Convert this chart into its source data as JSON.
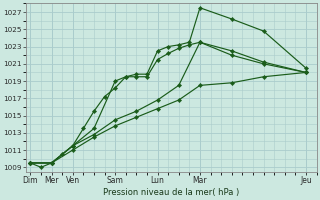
{
  "background_color": "#cce8e0",
  "grid_color": "#aacccc",
  "line_color": "#1a5c1a",
  "title": "Pression niveau de la mer( hPa )",
  "ylim": [
    1008.5,
    1028.0
  ],
  "yticks": [
    1009,
    1011,
    1013,
    1015,
    1017,
    1019,
    1021,
    1023,
    1025,
    1027
  ],
  "x_tick_positions": [
    0,
    1,
    2,
    4,
    6,
    8,
    13
  ],
  "x_tick_labels": [
    "Dim",
    "Mer",
    "Ven",
    "Sam",
    "Lun",
    "Mar",
    "Jeu"
  ],
  "xlim": [
    -0.2,
    13.5
  ],
  "series": [
    {
      "x": [
        0,
        0.5,
        1,
        1.5,
        2,
        2.5,
        3,
        3.5,
        4,
        4.5,
        5,
        5.5,
        6,
        6.5,
        7,
        7.5,
        8,
        9.5,
        11,
        13
      ],
      "y": [
        1009.5,
        1009.0,
        1009.5,
        1010.5,
        1011.5,
        1013.5,
        1015.5,
        1017.2,
        1018.2,
        1019.5,
        1019.5,
        1019.5,
        1021.5,
        1022.2,
        1022.8,
        1023.2,
        1023.5,
        1022.0,
        1021.0,
        1020.0
      ]
    },
    {
      "x": [
        0,
        1,
        2,
        3,
        4,
        4.5,
        5,
        5.5,
        6,
        6.5,
        7,
        7.5,
        8,
        9.5,
        11,
        13
      ],
      "y": [
        1009.5,
        1009.5,
        1011.5,
        1013.5,
        1019.0,
        1019.5,
        1019.8,
        1019.8,
        1022.5,
        1023.0,
        1023.2,
        1023.5,
        1027.5,
        1026.2,
        1024.8,
        1020.5
      ]
    },
    {
      "x": [
        0,
        1,
        2,
        3,
        4,
        5,
        6,
        7,
        8,
        9.5,
        11,
        13
      ],
      "y": [
        1009.5,
        1009.5,
        1011.5,
        1012.8,
        1014.5,
        1015.5,
        1016.8,
        1018.5,
        1023.5,
        1022.5,
        1021.2,
        1020.0
      ]
    },
    {
      "x": [
        0,
        1,
        2,
        3,
        4,
        5,
        6,
        7,
        8,
        9.5,
        11,
        13
      ],
      "y": [
        1009.5,
        1009.5,
        1011.0,
        1012.5,
        1013.8,
        1014.8,
        1015.8,
        1016.8,
        1018.5,
        1018.8,
        1019.5,
        1020.0
      ]
    }
  ]
}
